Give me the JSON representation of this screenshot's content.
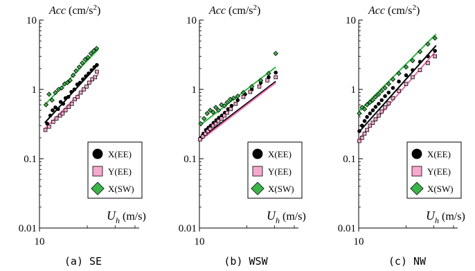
{
  "chart_data": [
    {
      "type": "scatter",
      "caption": "(a) SE",
      "xlabel": "U_h (m/s)",
      "ylabel": "Acc (cm/s2)",
      "xscale": "log",
      "yscale": "log",
      "xlim": [
        10,
        40
      ],
      "ylim": [
        0.01,
        10
      ],
      "x_ticks": [
        "10"
      ],
      "y_ticks": [
        "0.01",
        "0.1",
        "1",
        "10"
      ],
      "legend_position": "bottom-right",
      "series": [
        {
          "name": "X(EE)",
          "marker": "circle",
          "color": "#000000",
          "points": [
            [
              11.2,
              0.32
            ],
            [
              11.7,
              0.42
            ],
            [
              12.1,
              0.5
            ],
            [
              12.6,
              0.55
            ],
            [
              13.1,
              0.52
            ],
            [
              13.6,
              0.66
            ],
            [
              14.1,
              0.62
            ],
            [
              14.6,
              0.75
            ],
            [
              15.2,
              0.78
            ],
            [
              15.9,
              0.92
            ],
            [
              16.6,
              1.0
            ],
            [
              17.3,
              1.18
            ],
            [
              18.0,
              1.25
            ],
            [
              18.8,
              1.4
            ],
            [
              19.6,
              1.55
            ],
            [
              20.4,
              1.7
            ],
            [
              21.3,
              1.9
            ],
            [
              22.2,
              2.1
            ],
            [
              23.0,
              2.25
            ]
          ],
          "fit": [
            [
              10.8,
              0.33
            ],
            [
              23.5,
              2.3
            ]
          ]
        },
        {
          "name": "Y(EE)",
          "marker": "square",
          "color": "#f7a8cf",
          "points": [
            [
              10.9,
              0.26
            ],
            [
              11.5,
              0.29
            ],
            [
              12.2,
              0.34
            ],
            [
              12.8,
              0.38
            ],
            [
              13.5,
              0.42
            ],
            [
              14.0,
              0.45
            ],
            [
              14.6,
              0.5
            ],
            [
              15.3,
              0.56
            ],
            [
              16.0,
              0.62
            ],
            [
              16.7,
              0.72
            ],
            [
              17.4,
              0.78
            ],
            [
              18.2,
              0.9
            ],
            [
              19.0,
              1.0
            ],
            [
              19.8,
              1.1
            ],
            [
              20.6,
              1.25
            ],
            [
              21.5,
              1.4
            ],
            [
              22.4,
              1.5
            ],
            [
              23.0,
              1.8
            ]
          ],
          "fit": [
            [
              10.8,
              0.27
            ],
            [
              23.5,
              1.65
            ]
          ]
        },
        {
          "name": "X(SW)",
          "marker": "diamond",
          "color": "#3cb34a",
          "points": [
            [
              11.0,
              0.6
            ],
            [
              11.5,
              0.85
            ],
            [
              12.0,
              0.7
            ],
            [
              12.6,
              0.9
            ],
            [
              13.2,
              1.0
            ],
            [
              13.8,
              1.05
            ],
            [
              14.4,
              1.2
            ],
            [
              15.0,
              1.25
            ],
            [
              15.6,
              1.35
            ],
            [
              16.3,
              1.6
            ],
            [
              17.0,
              1.85
            ],
            [
              17.8,
              2.1
            ],
            [
              18.6,
              2.4
            ],
            [
              19.4,
              2.7
            ],
            [
              20.2,
              2.9
            ],
            [
              21.1,
              3.3
            ],
            [
              22.0,
              3.6
            ],
            [
              22.9,
              3.9
            ]
          ],
          "fit": [
            [
              10.8,
              0.6
            ],
            [
              23.5,
              3.8
            ]
          ]
        }
      ]
    },
    {
      "type": "scatter",
      "caption": "(b) WSW",
      "xlabel": "U_h (m/s)",
      "ylabel": "Acc (cm/s2)",
      "xscale": "log",
      "yscale": "log",
      "xlim": [
        10,
        40
      ],
      "ylim": [
        0.01,
        10
      ],
      "x_ticks": [
        "10"
      ],
      "y_ticks": [
        "0.01",
        "0.1",
        "1",
        "10"
      ],
      "legend_position": "bottom-right",
      "series": [
        {
          "name": "X(EE)",
          "marker": "circle",
          "color": "#000000",
          "points": [
            [
              10.2,
              0.2
            ],
            [
              10.6,
              0.23
            ],
            [
              11.0,
              0.26
            ],
            [
              11.4,
              0.28
            ],
            [
              11.8,
              0.3
            ],
            [
              12.3,
              0.33
            ],
            [
              12.8,
              0.36
            ],
            [
              13.3,
              0.39
            ],
            [
              13.9,
              0.42
            ],
            [
              14.5,
              0.46
            ],
            [
              15.2,
              0.52
            ],
            [
              16.0,
              0.58
            ],
            [
              17.5,
              0.7
            ],
            [
              19.5,
              0.85
            ],
            [
              21.5,
              1.0
            ],
            [
              24.5,
              1.25
            ],
            [
              27.5,
              1.5
            ],
            [
              30.5,
              1.75
            ]
          ],
          "fit": [
            [
              10.0,
              0.19
            ],
            [
              30.5,
              1.3
            ]
          ]
        },
        {
          "name": "Y(EE)",
          "marker": "square",
          "color": "#f7a8cf",
          "points": [
            [
              10.1,
              0.19
            ],
            [
              10.5,
              0.21
            ],
            [
              10.9,
              0.23
            ],
            [
              11.3,
              0.25
            ],
            [
              11.7,
              0.27
            ],
            [
              12.2,
              0.3
            ],
            [
              12.7,
              0.32
            ],
            [
              13.2,
              0.35
            ],
            [
              13.8,
              0.38
            ],
            [
              14.4,
              0.42
            ],
            [
              15.0,
              0.46
            ],
            [
              15.8,
              0.52
            ],
            [
              17.0,
              0.62
            ],
            [
              19.0,
              0.78
            ],
            [
              21.0,
              0.92
            ],
            [
              24.0,
              1.1
            ],
            [
              27.0,
              1.35
            ],
            [
              30.5,
              1.5
            ]
          ],
          "fit": [
            [
              10.0,
              0.18
            ],
            [
              30.5,
              1.25
            ]
          ]
        },
        {
          "name": "X(SW)",
          "marker": "diamond",
          "color": "#3cb34a",
          "points": [
            [
              10.2,
              0.32
            ],
            [
              10.7,
              0.38
            ],
            [
              11.2,
              0.45
            ],
            [
              11.7,
              0.5
            ],
            [
              12.2,
              0.47
            ],
            [
              12.7,
              0.55
            ],
            [
              13.2,
              0.5
            ],
            [
              13.8,
              0.6
            ],
            [
              14.4,
              0.58
            ],
            [
              15.0,
              0.65
            ],
            [
              15.7,
              0.72
            ],
            [
              16.5,
              0.75
            ],
            [
              17.5,
              0.8
            ],
            [
              19.0,
              0.9
            ],
            [
              21.5,
              1.1
            ],
            [
              24.5,
              1.35
            ],
            [
              27.5,
              1.7
            ],
            [
              30.5,
              3.3
            ]
          ],
          "fit": [
            [
              10.0,
              0.3
            ],
            [
              30.5,
              2.1
            ]
          ]
        }
      ]
    },
    {
      "type": "scatter",
      "caption": "(c) NW",
      "xlabel": "U_h (m/s)",
      "ylabel": "Acc (cm/s2)",
      "xscale": "log",
      "yscale": "log",
      "xlim": [
        10,
        40
      ],
      "ylim": [
        0.01,
        10
      ],
      "x_ticks": [
        "10"
      ],
      "y_ticks": [
        "0.01",
        "0.1",
        "1",
        "10"
      ],
      "legend_position": "bottom-right",
      "series": [
        {
          "name": "X(EE)",
          "marker": "circle",
          "color": "#000000",
          "points": [
            [
              10.1,
              0.25
            ],
            [
              10.5,
              0.3
            ],
            [
              10.9,
              0.35
            ],
            [
              11.3,
              0.4
            ],
            [
              11.8,
              0.45
            ],
            [
              12.3,
              0.5
            ],
            [
              12.8,
              0.56
            ],
            [
              13.4,
              0.62
            ],
            [
              14.0,
              0.7
            ],
            [
              14.7,
              0.8
            ],
            [
              15.5,
              0.9
            ],
            [
              16.5,
              1.05
            ],
            [
              18.0,
              1.3
            ],
            [
              20.0,
              1.6
            ],
            [
              22.0,
              1.9
            ],
            [
              24.5,
              2.5
            ],
            [
              27.5,
              3.0
            ],
            [
              30.5,
              3.6
            ]
          ],
          "fit": [
            [
              10.0,
              0.24
            ],
            [
              31.0,
              4.3
            ]
          ]
        },
        {
          "name": "Y(EE)",
          "marker": "square",
          "color": "#f7a8cf",
          "points": [
            [
              10.1,
              0.18
            ],
            [
              10.5,
              0.2
            ],
            [
              10.9,
              0.23
            ],
            [
              11.3,
              0.26
            ],
            [
              11.8,
              0.3
            ],
            [
              12.3,
              0.33
            ],
            [
              12.8,
              0.37
            ],
            [
              13.4,
              0.42
            ],
            [
              14.0,
              0.48
            ],
            [
              14.7,
              0.55
            ],
            [
              15.5,
              0.63
            ],
            [
              16.5,
              0.75
            ],
            [
              18.0,
              0.95
            ],
            [
              20.0,
              1.2
            ],
            [
              22.0,
              1.5
            ],
            [
              24.5,
              1.9
            ],
            [
              27.5,
              2.4
            ],
            [
              30.5,
              3.0
            ]
          ],
          "fit": [
            [
              10.0,
              0.19
            ],
            [
              31.0,
              3.6
            ]
          ]
        },
        {
          "name": "X(SW)",
          "marker": "diamond",
          "color": "#3cb34a",
          "points": [
            [
              10.1,
              0.45
            ],
            [
              10.5,
              0.55
            ],
            [
              10.9,
              0.52
            ],
            [
              11.3,
              0.6
            ],
            [
              11.8,
              0.65
            ],
            [
              12.3,
              0.7
            ],
            [
              12.8,
              0.78
            ],
            [
              13.4,
              0.85
            ],
            [
              14.0,
              0.95
            ],
            [
              14.7,
              1.05
            ],
            [
              15.5,
              1.2
            ],
            [
              16.5,
              1.4
            ],
            [
              18.0,
              1.7
            ],
            [
              20.0,
              2.1
            ],
            [
              22.0,
              2.6
            ],
            [
              24.5,
              3.5
            ],
            [
              27.5,
              4.5
            ],
            [
              30.5,
              5.5
            ]
          ],
          "fit": [
            [
              10.0,
              0.48
            ],
            [
              31.0,
              6.3
            ]
          ]
        }
      ]
    }
  ]
}
